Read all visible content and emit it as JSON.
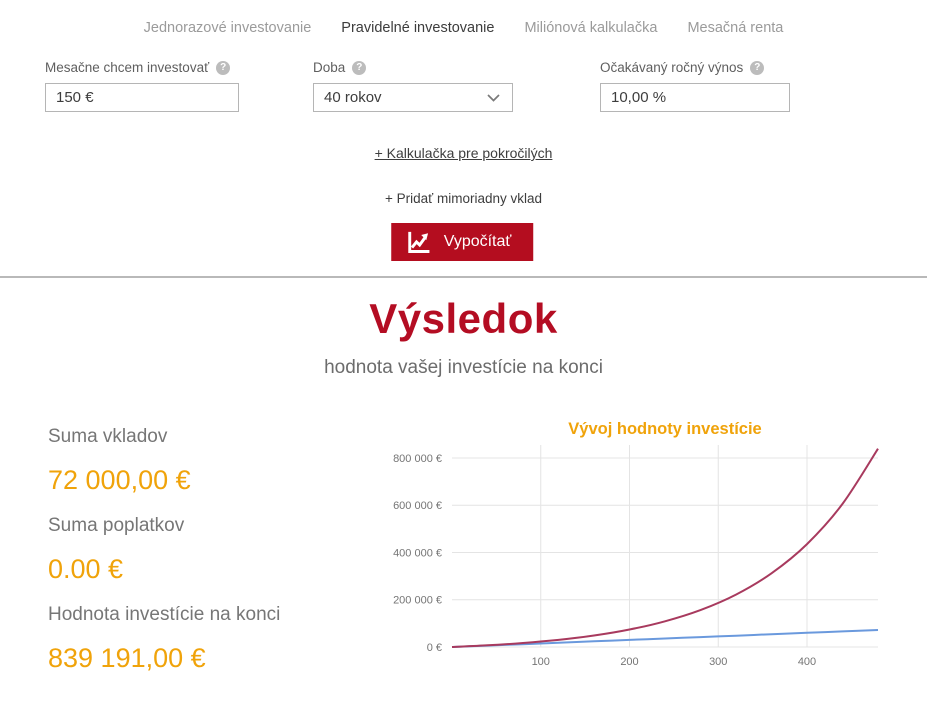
{
  "tabs": [
    {
      "label": "Jednorazové investovanie",
      "active": false
    },
    {
      "label": "Pravidelné investovanie",
      "active": true
    },
    {
      "label": "Miliónová kalkulačka",
      "active": false
    },
    {
      "label": "Mesačná renta",
      "active": false
    }
  ],
  "form": {
    "monthly": {
      "label": "Mesačne chcem investovať",
      "value": "150 €"
    },
    "duration": {
      "label": "Doba",
      "value": "40 rokov"
    },
    "yield": {
      "label": "Očakávaný ročný výnos",
      "value": "10,00 %"
    }
  },
  "icons": {
    "help_glyph": "?"
  },
  "links": {
    "advanced_calculator": "+ Kalkulačka pre pokročilých",
    "extra_deposit": "+ Pridať mimoriadny vklad"
  },
  "calculate_button": {
    "label": "Vypočítať"
  },
  "result": {
    "title": "Výsledok",
    "subtitle": "hodnota vašej investície na konci",
    "items": [
      {
        "label": "Suma vkladov",
        "value": "72 000,00 €"
      },
      {
        "label": "Suma poplatkov",
        "value": "0.00 €"
      },
      {
        "label": "Hodnota investície na konci",
        "value": "839 191,00 €"
      }
    ]
  },
  "colors": {
    "brand_red": "#b40d1f",
    "heading_red": "#b40d23",
    "amber": "#f0a30a",
    "tab_active": "#3d3d3d",
    "tab_inactive": "#9b9b9b",
    "gridline": "#e4e4e4",
    "series_value": "#a83a5e",
    "series_deposits": "#6a99dd"
  },
  "chart_data": {
    "type": "line",
    "title": "Vývoj hodnoty investície",
    "xlabel": "",
    "ylabel": "",
    "grid": true,
    "legend": "none",
    "xlim": [
      0,
      480
    ],
    "ylim": [
      0,
      855000
    ],
    "x_ticks": [
      {
        "value": 100,
        "label": "100"
      },
      {
        "value": 200,
        "label": "200"
      },
      {
        "value": 300,
        "label": "300"
      },
      {
        "value": 400,
        "label": "400"
      }
    ],
    "y_ticks": [
      {
        "value": 0,
        "label": "0 €"
      },
      {
        "value": 200000,
        "label": "200 000 €"
      },
      {
        "value": 400000,
        "label": "400 000 €"
      },
      {
        "value": 600000,
        "label": "600 000 €"
      },
      {
        "value": 800000,
        "label": "800 000 €"
      }
    ],
    "x": [
      0,
      40,
      80,
      120,
      160,
      200,
      240,
      280,
      320,
      360,
      400,
      440,
      480
    ],
    "series": [
      {
        "name": "Hodnota investície",
        "color": "#a83a5e",
        "values": [
          0,
          7091,
          16833,
          30218,
          48609,
          73873,
          108598,
          156306,
          221855,
          311893,
          435605,
          605596,
          839191
        ]
      },
      {
        "name": "Suma vkladov",
        "color": "#6a99dd",
        "values": [
          0,
          6000,
          12000,
          18000,
          24000,
          30000,
          36000,
          42000,
          48000,
          54000,
          60000,
          66000,
          72000
        ]
      }
    ]
  }
}
